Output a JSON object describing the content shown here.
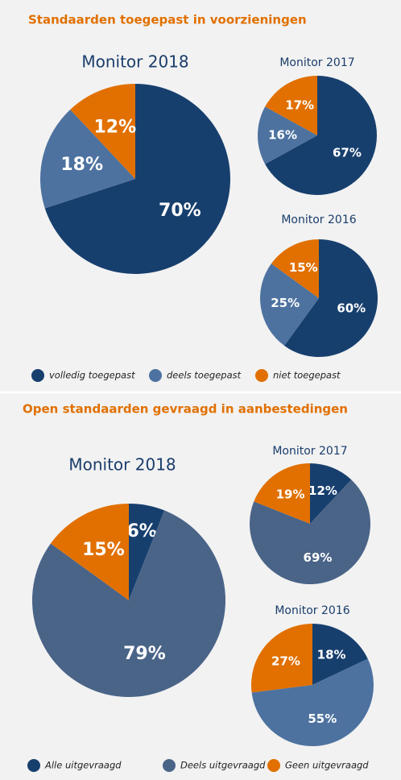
{
  "sections": [
    "Standaarden toegepast in voorzieningen",
    "Open standaarden gevraagd in aanbestedingen"
  ],
  "chart_data": [
    {
      "type": "pie",
      "title": "Monitor 2018",
      "categories": [
        "volledig toegepast",
        "deels toegepast",
        "niet toegepast"
      ],
      "values": [
        70,
        18,
        12
      ],
      "value_labels": [
        "70%",
        "18%",
        "12%"
      ],
      "colors": [
        "#173f6e",
        "#4d72a0",
        "#e17000"
      ]
    },
    {
      "type": "pie",
      "title": "Monitor 2017",
      "categories": [
        "volledig toegepast",
        "deels toegepast",
        "niet toegepast"
      ],
      "values": [
        67,
        16,
        17
      ],
      "value_labels": [
        "67%",
        "16%",
        "17%"
      ],
      "colors": [
        "#173f6e",
        "#4d72a0",
        "#e17000"
      ]
    },
    {
      "type": "pie",
      "title": "Monitor 2016",
      "categories": [
        "volledig toegepast",
        "deels toegepast",
        "niet toegepast"
      ],
      "values": [
        60,
        25,
        15
      ],
      "value_labels": [
        "60%",
        "25%",
        "15%"
      ],
      "colors": [
        "#173f6e",
        "#4d72a0",
        "#e17000"
      ]
    },
    {
      "type": "pie",
      "title": "Monitor 2018",
      "categories": [
        "Alle uitgevraagd",
        "Deels uitgevraagd",
        "Geen uitgevraagd"
      ],
      "values": [
        6,
        79,
        15
      ],
      "value_labels": [
        "6%",
        "79%",
        "15%"
      ],
      "colors": [
        "#173f6e",
        "#4a6488",
        "#e17000"
      ]
    },
    {
      "type": "pie",
      "title": "Monitor 2017",
      "categories": [
        "Alle uitgevraagd",
        "Deels uitgevraagd",
        "Geen uitgevraagd"
      ],
      "values": [
        12,
        69,
        19
      ],
      "value_labels": [
        "12%",
        "69%",
        "19%"
      ],
      "colors": [
        "#173f6e",
        "#4a6488",
        "#e17000"
      ]
    },
    {
      "type": "pie",
      "title": "Monitor 2016",
      "categories": [
        "Alle uitgevraagd",
        "Deels uitgevraagd",
        "Geen uitgevraagd"
      ],
      "values": [
        18,
        55,
        27
      ],
      "value_labels": [
        "18%",
        "55%",
        "27%"
      ],
      "colors": [
        "#173f6e",
        "#4d72a0",
        "#e17000"
      ]
    }
  ]
}
